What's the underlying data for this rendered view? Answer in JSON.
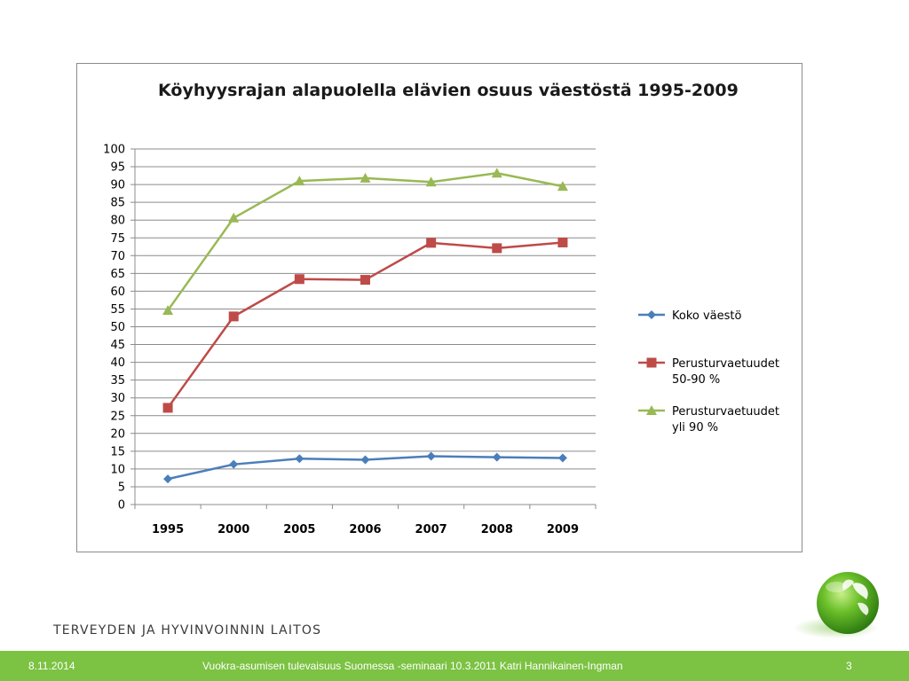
{
  "org_name": "TERVEYDEN JA HYVINVOINNIN LAITOS",
  "footer": {
    "date": "8.11.2014",
    "presentation": "Vuokra-asumisen tulevaisuus Suomessa -seminaari 10.3.2011   Katri Hannikainen-Ingman",
    "page": "3"
  },
  "logo_icon": "globe-leaf-icon",
  "chart_data": {
    "type": "line",
    "title": "Köyhyysrajan alapuolella  elävien osuus väestöstä 1995-2009",
    "xlabel": "",
    "ylabel": "",
    "categories": [
      "1995",
      "2000",
      "2005",
      "2006",
      "2007",
      "2008",
      "2009"
    ],
    "ylim": [
      0,
      100
    ],
    "yticks": [
      0,
      5,
      10,
      15,
      20,
      25,
      30,
      35,
      40,
      45,
      50,
      55,
      60,
      65,
      70,
      75,
      80,
      85,
      90,
      95,
      100
    ],
    "grid": true,
    "legend_position": "right",
    "series": [
      {
        "name_lines": [
          "Koko väestö"
        ],
        "color": "#4a7ebb",
        "marker": "diamond",
        "values": [
          7.2,
          11.3,
          12.9,
          12.6,
          13.6,
          13.3,
          13.1
        ]
      },
      {
        "name_lines": [
          "Perusturvaetuudet",
          "50-90 %"
        ],
        "color": "#be4b48",
        "marker": "square",
        "values": [
          27.2,
          52.9,
          63.4,
          63.2,
          73.6,
          72.1,
          73.7
        ]
      },
      {
        "name_lines": [
          "Perusturvaetuudet",
          "yli 90 %"
        ],
        "color": "#98b954",
        "marker": "triangle",
        "values": [
          54.6,
          80.6,
          91.0,
          91.8,
          90.7,
          93.2,
          89.5
        ]
      }
    ]
  }
}
